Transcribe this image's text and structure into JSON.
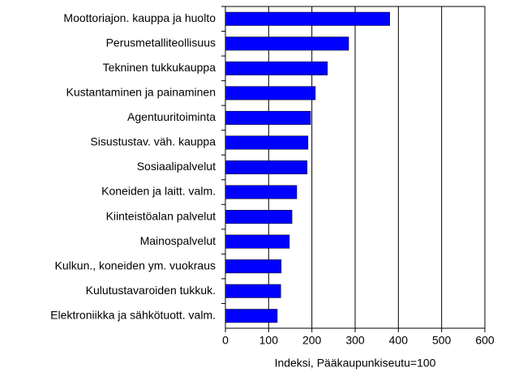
{
  "chart_data": {
    "type": "bar",
    "orientation": "horizontal",
    "xlabel": "Indeksi, Pääkaupunkiseutu=100",
    "categories": [
      "Moottoriajon. kauppa ja huolto",
      "Perusmetalliteollisuus",
      "Tekninen tukkukauppa",
      "Kustantaminen ja painaminen",
      "Agentuuritoiminta",
      "Sisustustav. väh. kauppa",
      "Sosiaalipalvelut",
      "Koneiden ja laitt. valm.",
      "Kiinteistöalan palvelut",
      "Mainospalvelut",
      "Kulkun., koneiden ym. vuokraus",
      "Kulutustavaroiden tukkuk.",
      "Elektroniikka ja sähkötuott. valm."
    ],
    "values": [
      380,
      285,
      236,
      208,
      197,
      191,
      189,
      165,
      154,
      148,
      129,
      128,
      120
    ],
    "color": "#0000ff",
    "xlim": [
      0,
      600
    ],
    "xticks": [
      0,
      100,
      200,
      300,
      400,
      500,
      600
    ],
    "grid": true
  }
}
